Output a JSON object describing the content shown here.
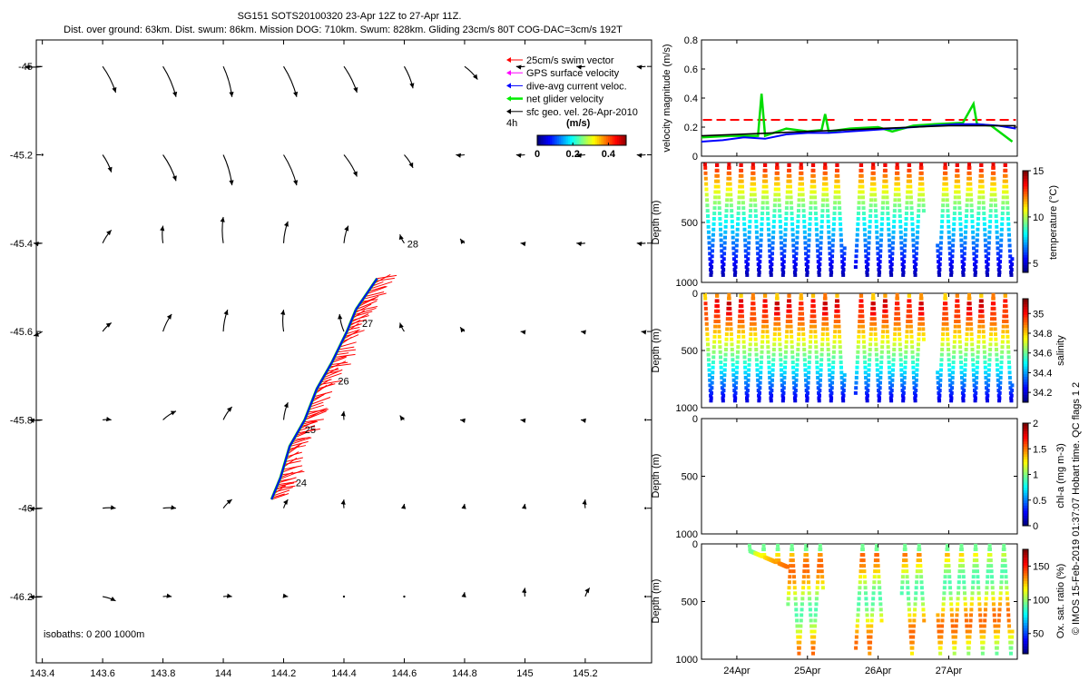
{
  "header": {
    "line1": "SG151 SOTS20100320 23-Apr 12Z to 27-Apr 11Z.",
    "line2": "Dist. over ground: 63km. Dist. swum: 86km. Mission DOG: 710km. Swum: 828km. Gliding 23cm/s 80T COG-DAC=3cm/s 192T"
  },
  "credit": "© IMOS 15-Feb-2019 01:37:07 Hobart time. QC flags 1  2",
  "colors": {
    "swim": "#ff0000",
    "gps": "#ff00ff",
    "dac": "#0000ff",
    "net": "#00ee00",
    "geo": "#000000",
    "speed_red": "#ff0000",
    "speed_blue": "#0000ff",
    "speed_green": "#00dd00",
    "speed_black": "#000000"
  },
  "chart_data": [
    {
      "type": "scatter",
      "name": "map",
      "xlim": [
        143.38,
        145.42
      ],
      "ylim": [
        -46.35,
        -44.94
      ],
      "xticks": [
        143.4,
        143.6,
        143.8,
        144,
        144.2,
        144.4,
        144.6,
        144.8,
        145,
        145.2
      ],
      "xtick_labels": [
        "143.4",
        "143.6",
        "143.8",
        "144",
        "144.2",
        "144.4",
        "144.6",
        "144.8",
        "145",
        "145.2"
      ],
      "yticks": [
        -45,
        -45.2,
        -45.4,
        -45.6,
        -45.8,
        -46,
        -46.2
      ],
      "ytick_labels": [
        "-45",
        "-45.2",
        "-45.4",
        "-45.6",
        "-45.8",
        "-46",
        "-46.2"
      ],
      "legend": {
        "position": "top-right",
        "entries": [
          "25cm/s swim vector",
          "GPS surface velocity",
          "dive-avg current veloc.",
          "net glider velocity",
          "sfc geo. vel. 26-Apr-2010"
        ],
        "interval_label": "4h",
        "units_label": "(m/s)",
        "cbar_ticks": [
          0,
          0.2,
          0.4
        ],
        "cbar_tick_labels": [
          "0",
          "0.2",
          "0.4"
        ],
        "cbar_range": [
          0,
          0.5
        ]
      },
      "isobaths_label": "isobaths: 0   200  1000m",
      "track": [
        {
          "lon": 144.16,
          "lat": -45.98
        },
        {
          "lon": 144.19,
          "lat": -45.93
        },
        {
          "lon": 144.22,
          "lat": -45.86
        },
        {
          "lon": 144.27,
          "lat": -45.8
        },
        {
          "lon": 144.31,
          "lat": -45.73
        },
        {
          "lon": 144.36,
          "lat": -45.67
        },
        {
          "lon": 144.41,
          "lat": -45.6
        },
        {
          "lon": 144.44,
          "lat": -45.55
        },
        {
          "lon": 144.51,
          "lat": -45.48
        }
      ],
      "day_labels": [
        {
          "text": "24",
          "lon": 144.24,
          "lat": -45.95
        },
        {
          "text": "25",
          "lon": 144.27,
          "lat": -45.83
        },
        {
          "text": "26",
          "lon": 144.38,
          "lat": -45.72
        },
        {
          "text": "27",
          "lon": 144.46,
          "lat": -45.59
        },
        {
          "text": "28",
          "lon": 144.61,
          "lat": -45.41
        }
      ],
      "geo_vectors": {
        "lons": [
          143.4,
          143.6,
          143.8,
          144,
          144.2,
          144.4,
          144.6,
          144.8,
          145,
          145.2,
          145.4
        ],
        "lats": [
          -45,
          -45.2,
          -45.4,
          -45.6,
          -45.8,
          -46,
          -46.2
        ],
        "u": [
          [
            -0.04,
            0.03,
            0.03,
            0.02,
            0.03,
            0.03,
            0.02,
            0.03,
            -0.02,
            -0.02,
            -0.02
          ],
          [
            0.0,
            0.02,
            0.03,
            0.02,
            0.03,
            0.03,
            0.02,
            -0.02,
            -0.02,
            -0.02,
            -0.02
          ],
          [
            -0.02,
            0.02,
            0.0,
            0.0,
            0.01,
            0.01,
            -0.01,
            -0.01,
            -0.01,
            -0.02,
            -0.02
          ],
          [
            -0.02,
            0.02,
            0.02,
            0.01,
            0.0,
            -0.01,
            -0.01,
            -0.01,
            -0.01,
            -0.01,
            -0.01
          ],
          [
            -0.03,
            0.02,
            0.03,
            0.02,
            0.01,
            0.0,
            -0.01,
            -0.01,
            -0.01,
            -0.01,
            0.0
          ],
          [
            -0.03,
            0.03,
            0.03,
            0.02,
            0.01,
            0.0,
            0.0,
            0.0,
            0.0,
            0.0,
            0.0
          ],
          [
            -0.03,
            0.03,
            0.02,
            0.02,
            0.01,
            0.0,
            0.0,
            0.0,
            0.0,
            0.01,
            0.0
          ]
        ],
        "v": [
          [
            0.0,
            -0.06,
            -0.07,
            -0.07,
            -0.07,
            -0.06,
            -0.05,
            -0.03,
            0.0,
            0.0,
            0.0
          ],
          [
            0.0,
            -0.04,
            -0.06,
            -0.07,
            -0.07,
            -0.05,
            -0.03,
            0.0,
            0.0,
            0.0,
            0.0
          ],
          [
            0.0,
            0.03,
            0.04,
            0.06,
            0.05,
            0.04,
            0.02,
            0.01,
            0.0,
            0.0,
            0.0
          ],
          [
            -0.01,
            0.02,
            0.04,
            0.05,
            0.05,
            0.04,
            0.02,
            0.01,
            0.0,
            0.0,
            0.0
          ],
          [
            0.0,
            0.0,
            0.02,
            0.03,
            0.04,
            0.02,
            0.01,
            0.0,
            0.0,
            0.0,
            0.0
          ],
          [
            0.0,
            0.0,
            0.0,
            0.02,
            0.02,
            0.02,
            0.01,
            0.01,
            0.01,
            0.02,
            0.0
          ],
          [
            0.0,
            -0.01,
            0.0,
            0.0,
            0.0,
            0.0,
            0.0,
            0.01,
            0.02,
            0.02,
            0.0
          ]
        ]
      }
    },
    {
      "type": "line",
      "name": "velocity-magnitude",
      "ylabel": "velocity magnitude (m/s)",
      "ylim": [
        0,
        0.8
      ],
      "yticks": [
        0,
        0.2,
        0.4,
        0.6,
        0.8
      ],
      "ytick_labels": [
        "0",
        "0.2",
        "0.4",
        "0.6",
        "0.8"
      ],
      "xlim": [
        23.5,
        27.97
      ],
      "red_dashed": {
        "y": 0.25,
        "segments": [
          [
            23.52,
            25.43
          ],
          [
            25.66,
            26.81
          ],
          [
            26.95,
            27.95
          ]
        ]
      },
      "black_line": {
        "x": [
          23.5,
          24.0,
          24.5,
          25.0,
          25.5,
          26.0,
          26.5,
          27.0,
          27.5,
          27.95
        ],
        "y": [
          0.14,
          0.15,
          0.16,
          0.17,
          0.18,
          0.19,
          0.2,
          0.21,
          0.21,
          0.21
        ]
      },
      "blue_line": {
        "x": [
          23.5,
          23.8,
          24.1,
          24.4,
          24.7,
          25.0,
          25.3,
          25.6,
          25.9,
          26.2,
          26.5,
          26.8,
          27.1,
          27.4,
          27.7,
          27.95
        ],
        "y": [
          0.1,
          0.11,
          0.13,
          0.12,
          0.15,
          0.16,
          0.16,
          0.17,
          0.18,
          0.19,
          0.2,
          0.21,
          0.22,
          0.22,
          0.21,
          0.19
        ]
      },
      "green_line": {
        "x": [
          23.5,
          23.9,
          24.3,
          24.35,
          24.4,
          24.7,
          25.0,
          25.2,
          25.25,
          25.3,
          25.6,
          26.0,
          26.2,
          26.5,
          26.8,
          27.2,
          27.35,
          27.4,
          27.6,
          27.9
        ],
        "y": [
          0.13,
          0.14,
          0.14,
          0.43,
          0.14,
          0.19,
          0.17,
          0.18,
          0.29,
          0.17,
          0.19,
          0.2,
          0.17,
          0.21,
          0.22,
          0.23,
          0.36,
          0.22,
          0.21,
          0.1
        ]
      }
    },
    {
      "type": "heatmap",
      "name": "temperature",
      "ylabel": "Depth (m)",
      "ylim": [
        1000,
        0
      ],
      "yticks": [
        0,
        500,
        1000
      ],
      "ytick_labels": [
        "",
        "500",
        "1000"
      ],
      "clabel": "temperature (°C)",
      "crange": [
        4,
        15
      ],
      "cticks": [
        5,
        10,
        15
      ],
      "ctick_labels": [
        "5",
        "10",
        "15"
      ],
      "dives": {
        "start": 23.55,
        "end": 27.9,
        "period": 0.17,
        "max_depth": 950,
        "gaps": [
          [
            25.53,
            25.68
          ],
          [
            26.65,
            26.84
          ]
        ]
      }
    },
    {
      "type": "heatmap",
      "name": "salinity",
      "ylabel": "Depth (m)",
      "ylim": [
        1000,
        0
      ],
      "yticks": [
        0,
        500,
        1000
      ],
      "ytick_labels": [
        "0",
        "500",
        "1000"
      ],
      "clabel": "salinity",
      "crange": [
        34.1,
        35.15
      ],
      "cticks": [
        34.2,
        34.4,
        34.6,
        34.8,
        35
      ],
      "ctick_labels": [
        "34.2",
        "34.4",
        "34.6",
        "34.8",
        "35"
      ],
      "dives": {
        "start": 23.55,
        "end": 27.9,
        "period": 0.17,
        "max_depth": 950,
        "gaps": [
          [
            25.53,
            25.68
          ],
          [
            26.65,
            26.84
          ]
        ]
      }
    },
    {
      "type": "heatmap",
      "name": "chl-a",
      "ylabel": "Depth (m)",
      "ylim": [
        1000,
        0
      ],
      "yticks": [
        0,
        500,
        1000
      ],
      "ytick_labels": [
        "0",
        "500",
        "1000"
      ],
      "clabel": "chl-a (mg m-3)",
      "crange": [
        0,
        2
      ],
      "cticks": [
        0,
        0.5,
        1,
        1.5,
        2
      ],
      "ctick_labels": [
        "0",
        "0.5",
        "1",
        "1.5",
        "2"
      ]
    },
    {
      "type": "heatmap",
      "name": "oxygen",
      "ylabel": "Depth (m)",
      "ylim": [
        1000,
        0
      ],
      "yticks": [
        0,
        500,
        1000
      ],
      "ytick_labels": [
        "0",
        "500",
        "1000"
      ],
      "clabel": "Ox. sat. ratio (%)",
      "crange": [
        20,
        175
      ],
      "cticks": [
        50,
        100,
        150
      ],
      "ctick_labels": [
        "50",
        "100",
        "150"
      ],
      "xticks": [
        24,
        25,
        26,
        27
      ],
      "xtick_labels": [
        "24Apr",
        "25Apr",
        "26Apr",
        "27Apr"
      ],
      "dives": {
        "start": 24.18,
        "end": 27.9,
        "period": 0.2,
        "max_depth": 950,
        "gaps": [
          [
            25.22,
            25.68
          ],
          [
            26.05,
            26.33
          ],
          [
            26.65,
            26.84
          ]
        ],
        "shallow_before": 24.72
      }
    }
  ]
}
